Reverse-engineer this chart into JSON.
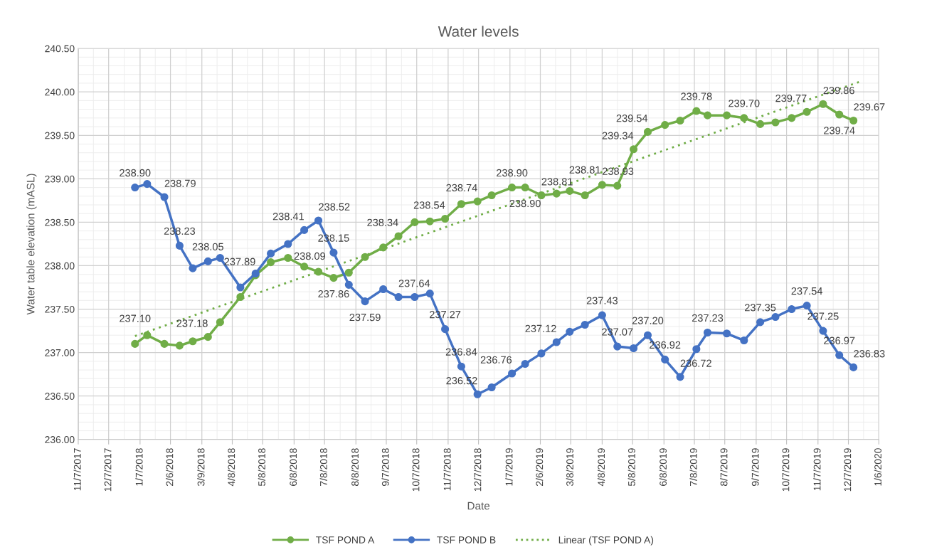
{
  "chart_data": {
    "type": "line",
    "title": "Water levels",
    "xlabel": "Date",
    "ylabel": "Water table elevation (mASL)",
    "x": [
      "2018-01-02",
      "2018-01-14",
      "2018-01-31",
      "2018-02-15",
      "2018-02-28",
      "2018-03-15",
      "2018-03-27",
      "2018-04-16",
      "2018-05-01",
      "2018-05-16",
      "2018-06-02",
      "2018-06-18",
      "2018-07-02",
      "2018-07-17",
      "2018-08-01",
      "2018-08-17",
      "2018-09-04",
      "2018-09-19",
      "2018-10-05",
      "2018-10-20",
      "2018-11-04",
      "2018-11-20",
      "2018-12-06",
      "2018-12-20",
      "2019-01-09",
      "2019-01-22",
      "2019-02-07",
      "2019-02-22",
      "2019-03-07",
      "2019-03-22",
      "2019-04-08",
      "2019-04-23",
      "2019-05-09",
      "2019-05-23",
      "2019-06-09",
      "2019-06-24",
      "2019-07-10",
      "2019-07-21",
      "2019-08-09",
      "2019-08-26",
      "2019-09-11",
      "2019-09-26",
      "2019-10-12",
      "2019-10-27",
      "2019-11-12",
      "2019-11-28",
      "2019-12-12"
    ],
    "series": [
      {
        "name": "TSF POND A",
        "color": "#70ad47",
        "marker": "circle",
        "line_style": "solid",
        "values": [
          237.1,
          237.2,
          237.1,
          237.08,
          237.13,
          237.18,
          237.35,
          237.64,
          237.89,
          238.04,
          238.09,
          237.99,
          237.93,
          237.86,
          237.92,
          238.1,
          238.21,
          238.34,
          238.5,
          238.51,
          238.54,
          238.71,
          238.74,
          238.81,
          238.9,
          238.9,
          238.81,
          238.83,
          238.86,
          238.81,
          238.93,
          238.92,
          239.34,
          239.54,
          239.62,
          239.67,
          239.78,
          239.73,
          239.73,
          239.7,
          239.63,
          239.65,
          239.7,
          239.77,
          239.86,
          239.74,
          239.67
        ],
        "value_labels": [
          "237.10",
          null,
          null,
          null,
          null,
          "237.18",
          null,
          null,
          "237.89",
          null,
          "238.09",
          null,
          null,
          "237.86",
          null,
          null,
          null,
          "238.34",
          null,
          null,
          "238.54",
          null,
          "238.74",
          null,
          "238.90",
          "238.90",
          "238.81",
          null,
          null,
          "238.81",
          "238.93",
          null,
          "239.34",
          "239.54",
          null,
          null,
          "239.78",
          null,
          null,
          "239.70",
          null,
          null,
          null,
          "239.77",
          "239.86",
          "239.74",
          "239.67"
        ]
      },
      {
        "name": "TSF POND B",
        "color": "#4472c4",
        "marker": "circle",
        "line_style": "solid",
        "values": [
          238.9,
          238.94,
          238.79,
          238.23,
          237.97,
          238.05,
          238.09,
          237.75,
          237.91,
          238.14,
          238.25,
          238.41,
          238.52,
          238.15,
          237.78,
          237.59,
          237.73,
          237.64,
          237.64,
          237.68,
          237.27,
          236.84,
          236.52,
          236.6,
          236.76,
          236.87,
          236.99,
          237.12,
          237.24,
          237.32,
          237.43,
          237.07,
          237.05,
          237.2,
          236.92,
          236.72,
          237.04,
          237.23,
          237.22,
          237.14,
          237.35,
          237.41,
          237.5,
          237.54,
          237.25,
          236.97,
          236.83
        ],
        "value_labels": [
          "238.90",
          null,
          "238.79",
          "238.23",
          null,
          "238.05",
          null,
          null,
          null,
          null,
          null,
          "238.41",
          "238.52",
          "238.15",
          null,
          "237.59",
          null,
          "237.64",
          null,
          null,
          "237.27",
          "236.84",
          "236.52",
          null,
          "236.76",
          null,
          null,
          "237.12",
          null,
          null,
          "237.43",
          "237.07",
          null,
          "237.20",
          "236.92",
          "236.72",
          null,
          "237.23",
          null,
          null,
          "237.35",
          null,
          null,
          "237.54",
          "237.25",
          "236.97",
          "236.83"
        ]
      },
      {
        "name": "Linear (TSF POND A)",
        "color": "#70ad47",
        "marker": "none",
        "line_style": "dotted",
        "x": [
          "2018-01-02",
          "2019-12-19"
        ],
        "values": [
          237.19,
          240.12
        ]
      }
    ],
    "xlim": [
      "2017-11-07",
      "2020-01-06"
    ],
    "xticks": [
      {
        "value": "2017-11-07",
        "label": "11/7/2017"
      },
      {
        "value": "2017-12-07",
        "label": "12/7/2017"
      },
      {
        "value": "2018-01-07",
        "label": "1/7/2018"
      },
      {
        "value": "2018-02-06",
        "label": "2/6/2018"
      },
      {
        "value": "2018-03-09",
        "label": "3/9/2018"
      },
      {
        "value": "2018-04-08",
        "label": "4/8/2018"
      },
      {
        "value": "2018-05-08",
        "label": "5/8/2018"
      },
      {
        "value": "2018-06-08",
        "label": "6/8/2018"
      },
      {
        "value": "2018-07-08",
        "label": "7/8/2018"
      },
      {
        "value": "2018-08-08",
        "label": "8/8/2018"
      },
      {
        "value": "2018-09-07",
        "label": "9/7/2018"
      },
      {
        "value": "2018-10-07",
        "label": "10/7/2018"
      },
      {
        "value": "2018-11-07",
        "label": "11/7/2018"
      },
      {
        "value": "2018-12-07",
        "label": "12/7/2018"
      },
      {
        "value": "2019-01-07",
        "label": "1/7/2019"
      },
      {
        "value": "2019-02-06",
        "label": "2/6/2019"
      },
      {
        "value": "2019-03-08",
        "label": "3/8/2019"
      },
      {
        "value": "2019-04-08",
        "label": "4/8/2019"
      },
      {
        "value": "2019-05-08",
        "label": "5/8/2019"
      },
      {
        "value": "2019-06-08",
        "label": "6/8/2019"
      },
      {
        "value": "2019-07-08",
        "label": "7/8/2019"
      },
      {
        "value": "2019-08-07",
        "label": "8/7/2019"
      },
      {
        "value": "2019-09-07",
        "label": "9/7/2019"
      },
      {
        "value": "2019-10-07",
        "label": "10/7/2019"
      },
      {
        "value": "2019-11-07",
        "label": "11/7/2019"
      },
      {
        "value": "2019-12-07",
        "label": "12/7/2019"
      },
      {
        "value": "2020-01-06",
        "label": "1/6/2020"
      }
    ],
    "ylim": [
      236.0,
      240.5
    ],
    "yticks": [
      {
        "value": 236.0,
        "label": "236.00"
      },
      {
        "value": 236.5,
        "label": "236.50"
      },
      {
        "value": 237.0,
        "label": "237.00"
      },
      {
        "value": 237.5,
        "label": "237.50"
      },
      {
        "value": 238.0,
        "label": "238.00"
      },
      {
        "value": 238.5,
        "label": "238.50"
      },
      {
        "value": 239.0,
        "label": "239.00"
      },
      {
        "value": 239.5,
        "label": "239.50"
      },
      {
        "value": 240.0,
        "label": "240.00"
      },
      {
        "value": 240.5,
        "label": "240.50"
      }
    ],
    "grid": true,
    "legend": "bottom"
  }
}
